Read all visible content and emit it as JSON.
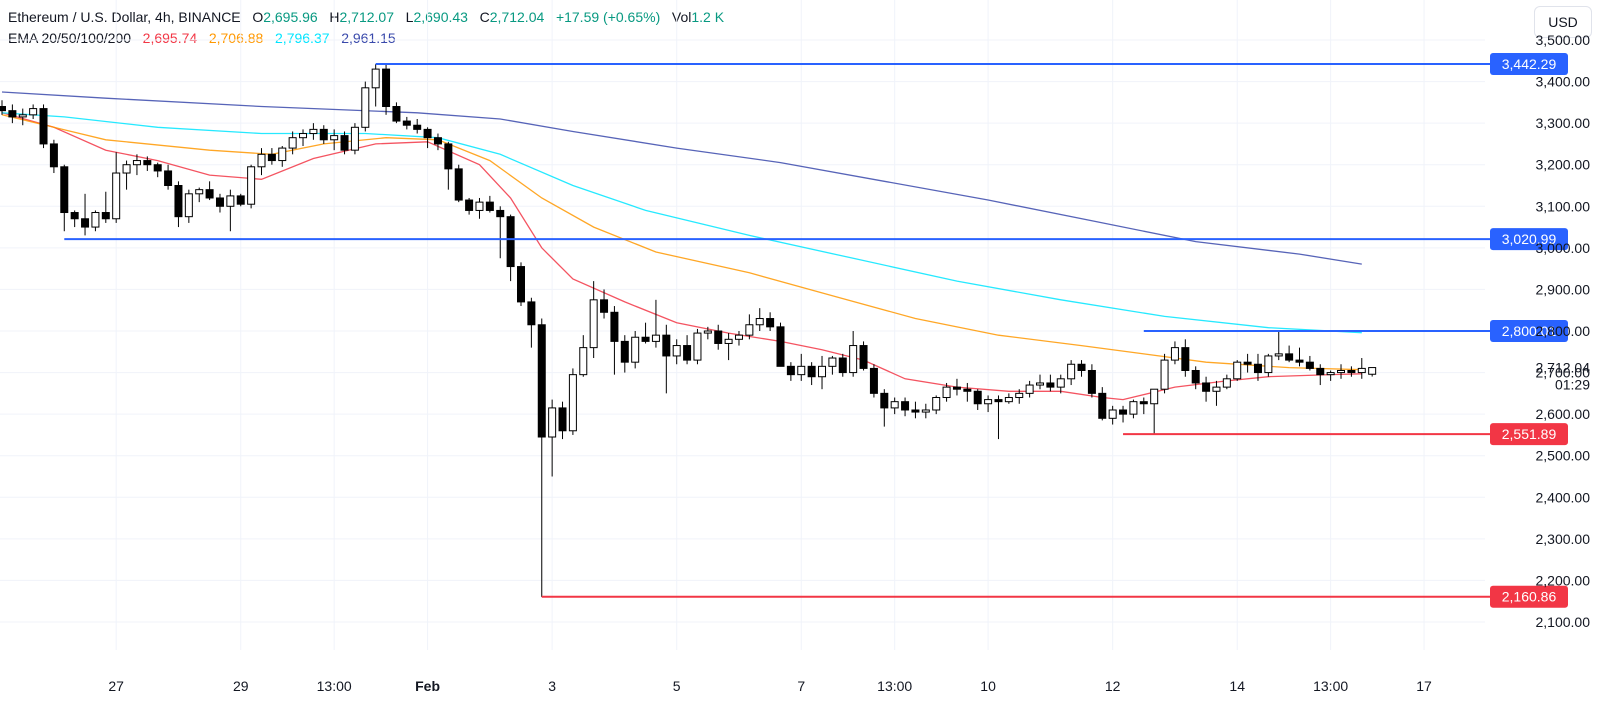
{
  "header": {
    "symbol": "Ethereum / U.S. Dollar, 4h, BINANCE",
    "o_label": "O",
    "o_value": "2,695.96",
    "h_label": "H",
    "h_value": "2,712.07",
    "l_label": "L",
    "l_value": "2,690.43",
    "c_label": "C",
    "c_value": "2,712.04",
    "change": "+17.59 (+0.65%)",
    "vol_label": "Vol",
    "vol_value": "1.2 K",
    "ema_label": "EMA 20/50/100/200",
    "ema20": "2,695.74",
    "ema50": "2,706.88",
    "ema100": "2,796.37",
    "ema200": "2,961.15"
  },
  "currency_button": "USD",
  "colors": {
    "up": "#ffffff",
    "down": "#000000",
    "candle_border": "#000000",
    "ema20": "#f23645",
    "ema50": "#ff9800",
    "ema100": "#00e5ff",
    "ema200": "#3949ab",
    "resistance": "#2962ff",
    "support": "#f23645",
    "text_green": "#089981"
  },
  "chart_data": {
    "type": "candlestick",
    "y_range": [
      2060,
      3520
    ],
    "y_ticks": [
      "3,500.00",
      "3,400.00",
      "3,300.00",
      "3,200.00",
      "3,100.00",
      "3,000.00",
      "2,900.00",
      "2,800.00",
      "2,700.00",
      "2,600.00",
      "2,500.00",
      "2,400.00",
      "2,300.00",
      "2,200.00",
      "2,100.00"
    ],
    "y_tick_values": [
      3500,
      3400,
      3300,
      3200,
      3100,
      3000,
      2900,
      2800,
      2700,
      2600,
      2500,
      2400,
      2300,
      2200,
      2100
    ],
    "x_labels": [
      {
        "text": "27",
        "bar": 11,
        "bold": false
      },
      {
        "text": "29",
        "bar": 23,
        "bold": false
      },
      {
        "text": "13:00",
        "bar": 32,
        "bold": false
      },
      {
        "text": "Feb",
        "bar": 41,
        "bold": true
      },
      {
        "text": "3",
        "bar": 53,
        "bold": false
      },
      {
        "text": "5",
        "bar": 65,
        "bold": false
      },
      {
        "text": "7",
        "bar": 77,
        "bold": false
      },
      {
        "text": "13:00",
        "bar": 86,
        "bold": false
      },
      {
        "text": "10",
        "bar": 95,
        "bold": false
      },
      {
        "text": "12",
        "bar": 107,
        "bold": false
      },
      {
        "text": "14",
        "bar": 119,
        "bold": false
      },
      {
        "text": "13:00",
        "bar": 128,
        "bold": false
      },
      {
        "text": "17",
        "bar": 137,
        "bold": false
      }
    ],
    "candles_ohlc": [
      [
        3340,
        3355,
        3320,
        3330
      ],
      [
        3330,
        3345,
        3300,
        3315
      ],
      [
        3315,
        3335,
        3295,
        3320
      ],
      [
        3320,
        3345,
        3310,
        3335
      ],
      [
        3335,
        3345,
        3240,
        3250
      ],
      [
        3250,
        3260,
        3180,
        3195
      ],
      [
        3195,
        3200,
        3040,
        3085
      ],
      [
        3085,
        3090,
        3050,
        3070
      ],
      [
        3070,
        3130,
        3030,
        3050
      ],
      [
        3050,
        3090,
        3040,
        3085
      ],
      [
        3085,
        3135,
        3060,
        3070
      ],
      [
        3070,
        3230,
        3060,
        3180
      ],
      [
        3180,
        3210,
        3140,
        3200
      ],
      [
        3200,
        3225,
        3175,
        3210
      ],
      [
        3210,
        3220,
        3185,
        3200
      ],
      [
        3200,
        3205,
        3170,
        3185
      ],
      [
        3185,
        3200,
        3140,
        3150
      ],
      [
        3150,
        3160,
        3050,
        3075
      ],
      [
        3075,
        3140,
        3060,
        3130
      ],
      [
        3130,
        3145,
        3110,
        3140
      ],
      [
        3140,
        3160,
        3115,
        3120
      ],
      [
        3120,
        3130,
        3085,
        3100
      ],
      [
        3100,
        3140,
        3040,
        3125
      ],
      [
        3125,
        3130,
        3100,
        3105
      ],
      [
        3105,
        3200,
        3095,
        3195
      ],
      [
        3195,
        3240,
        3175,
        3225
      ],
      [
        3225,
        3240,
        3200,
        3210
      ],
      [
        3210,
        3245,
        3195,
        3240
      ],
      [
        3240,
        3280,
        3225,
        3265
      ],
      [
        3265,
        3285,
        3245,
        3275
      ],
      [
        3275,
        3300,
        3260,
        3285
      ],
      [
        3285,
        3295,
        3250,
        3260
      ],
      [
        3260,
        3285,
        3235,
        3270
      ],
      [
        3270,
        3280,
        3225,
        3235
      ],
      [
        3235,
        3300,
        3225,
        3290
      ],
      [
        3290,
        3400,
        3280,
        3385
      ],
      [
        3385,
        3442,
        3340,
        3430
      ],
      [
        3430,
        3440,
        3320,
        3340
      ],
      [
        3340,
        3350,
        3300,
        3305
      ],
      [
        3305,
        3315,
        3285,
        3295
      ],
      [
        3295,
        3310,
        3275,
        3285
      ],
      [
        3285,
        3290,
        3240,
        3265
      ],
      [
        3265,
        3275,
        3235,
        3250
      ],
      [
        3250,
        3255,
        3140,
        3190
      ],
      [
        3190,
        3200,
        3110,
        3115
      ],
      [
        3115,
        3120,
        3080,
        3090
      ],
      [
        3090,
        3120,
        3070,
        3110
      ],
      [
        3110,
        3125,
        3085,
        3090
      ],
      [
        3090,
        3100,
        2975,
        3075
      ],
      [
        3075,
        3080,
        2920,
        2955
      ],
      [
        2955,
        2965,
        2860,
        2870
      ],
      [
        2870,
        2880,
        2760,
        2815
      ],
      [
        2815,
        2830,
        2160,
        2545
      ],
      [
        2545,
        2635,
        2450,
        2615
      ],
      [
        2615,
        2630,
        2540,
        2560
      ],
      [
        2560,
        2710,
        2550,
        2695
      ],
      [
        2695,
        2790,
        2690,
        2760
      ],
      [
        2760,
        2920,
        2735,
        2875
      ],
      [
        2875,
        2900,
        2830,
        2845
      ],
      [
        2845,
        2860,
        2695,
        2775
      ],
      [
        2775,
        2790,
        2700,
        2725
      ],
      [
        2725,
        2800,
        2710,
        2785
      ],
      [
        2785,
        2820,
        2770,
        2775
      ],
      [
        2775,
        2875,
        2760,
        2790
      ],
      [
        2790,
        2815,
        2650,
        2740
      ],
      [
        2740,
        2780,
        2720,
        2765
      ],
      [
        2765,
        2790,
        2720,
        2730
      ],
      [
        2730,
        2805,
        2720,
        2795
      ],
      [
        2795,
        2810,
        2780,
        2800
      ],
      [
        2800,
        2815,
        2755,
        2770
      ],
      [
        2770,
        2795,
        2730,
        2780
      ],
      [
        2780,
        2800,
        2765,
        2790
      ],
      [
        2790,
        2840,
        2780,
        2815
      ],
      [
        2815,
        2855,
        2800,
        2830
      ],
      [
        2830,
        2845,
        2800,
        2810
      ],
      [
        2810,
        2820,
        2715,
        2715
      ],
      [
        2715,
        2725,
        2680,
        2695
      ],
      [
        2695,
        2745,
        2680,
        2715
      ],
      [
        2715,
        2725,
        2670,
        2690
      ],
      [
        2690,
        2740,
        2660,
        2715
      ],
      [
        2715,
        2740,
        2695,
        2735
      ],
      [
        2735,
        2745,
        2690,
        2700
      ],
      [
        2700,
        2800,
        2690,
        2765
      ],
      [
        2765,
        2775,
        2705,
        2710
      ],
      [
        2710,
        2720,
        2640,
        2650
      ],
      [
        2650,
        2660,
        2570,
        2615
      ],
      [
        2615,
        2640,
        2600,
        2630
      ],
      [
        2630,
        2640,
        2595,
        2610
      ],
      [
        2610,
        2630,
        2590,
        2605
      ],
      [
        2605,
        2625,
        2590,
        2610
      ],
      [
        2610,
        2645,
        2600,
        2640
      ],
      [
        2640,
        2675,
        2630,
        2665
      ],
      [
        2665,
        2685,
        2645,
        2660
      ],
      [
        2660,
        2675,
        2630,
        2655
      ],
      [
        2655,
        2660,
        2610,
        2625
      ],
      [
        2625,
        2645,
        2605,
        2635
      ],
      [
        2635,
        2645,
        2540,
        2630
      ],
      [
        2630,
        2650,
        2625,
        2640
      ],
      [
        2640,
        2660,
        2625,
        2650
      ],
      [
        2650,
        2680,
        2640,
        2670
      ],
      [
        2670,
        2695,
        2660,
        2675
      ],
      [
        2675,
        2695,
        2655,
        2665
      ],
      [
        2665,
        2695,
        2650,
        2685
      ],
      [
        2685,
        2730,
        2670,
        2720
      ],
      [
        2720,
        2730,
        2690,
        2705
      ],
      [
        2705,
        2720,
        2640,
        2650
      ],
      [
        2650,
        2665,
        2585,
        2590
      ],
      [
        2590,
        2620,
        2575,
        2610
      ],
      [
        2610,
        2620,
        2580,
        2600
      ],
      [
        2600,
        2635,
        2590,
        2630
      ],
      [
        2630,
        2640,
        2600,
        2625
      ],
      [
        2625,
        2645,
        2551,
        2660
      ],
      [
        2660,
        2745,
        2650,
        2730
      ],
      [
        2730,
        2775,
        2720,
        2760
      ],
      [
        2760,
        2780,
        2690,
        2705
      ],
      [
        2705,
        2715,
        2660,
        2675
      ],
      [
        2675,
        2690,
        2630,
        2655
      ],
      [
        2655,
        2680,
        2620,
        2665
      ],
      [
        2665,
        2695,
        2660,
        2685
      ],
      [
        2685,
        2730,
        2680,
        2725
      ],
      [
        2725,
        2745,
        2700,
        2720
      ],
      [
        2720,
        2745,
        2680,
        2700
      ],
      [
        2700,
        2745,
        2690,
        2740
      ],
      [
        2740,
        2800,
        2730,
        2745
      ],
      [
        2745,
        2765,
        2725,
        2730
      ],
      [
        2730,
        2760,
        2715,
        2725
      ],
      [
        2725,
        2740,
        2705,
        2710
      ],
      [
        2710,
        2720,
        2670,
        2695
      ],
      [
        2695,
        2705,
        2680,
        2700
      ],
      [
        2700,
        2720,
        2685,
        2705
      ],
      [
        2705,
        2715,
        2690,
        2700
      ],
      [
        2700,
        2735,
        2685,
        2710
      ],
      [
        2695.96,
        2712.07,
        2690.43,
        2712.04
      ]
    ],
    "ema_series": [
      {
        "name": "EMA 20",
        "color": "#f23645",
        "points": [
          [
            0,
            3325
          ],
          [
            5,
            3290
          ],
          [
            10,
            3235
          ],
          [
            15,
            3210
          ],
          [
            20,
            3175
          ],
          [
            25,
            3165
          ],
          [
            30,
            3215
          ],
          [
            36,
            3250
          ],
          [
            41,
            3255
          ],
          [
            46,
            3200
          ],
          [
            49,
            3120
          ],
          [
            52,
            3000
          ],
          [
            55,
            2925
          ],
          [
            60,
            2870
          ],
          [
            65,
            2820
          ],
          [
            70,
            2795
          ],
          [
            75,
            2775
          ],
          [
            79,
            2755
          ],
          [
            83,
            2730
          ],
          [
            87,
            2685
          ],
          [
            92,
            2665
          ],
          [
            97,
            2655
          ],
          [
            102,
            2655
          ],
          [
            106,
            2640
          ],
          [
            108,
            2635
          ],
          [
            113,
            2665
          ],
          [
            118,
            2680
          ],
          [
            122,
            2690
          ],
          [
            128,
            2695
          ],
          [
            131,
            2697
          ]
        ]
      },
      {
        "name": "EMA 50",
        "color": "#ff9800",
        "points": [
          [
            0,
            3320
          ],
          [
            5,
            3290
          ],
          [
            10,
            3260
          ],
          [
            20,
            3235
          ],
          [
            26,
            3225
          ],
          [
            31,
            3250
          ],
          [
            37,
            3265
          ],
          [
            42,
            3260
          ],
          [
            47,
            3210
          ],
          [
            52,
            3120
          ],
          [
            57,
            3050
          ],
          [
            63,
            2990
          ],
          [
            72,
            2940
          ],
          [
            80,
            2885
          ],
          [
            88,
            2830
          ],
          [
            96,
            2790
          ],
          [
            104,
            2765
          ],
          [
            110,
            2745
          ],
          [
            116,
            2725
          ],
          [
            124,
            2712
          ],
          [
            131,
            2707
          ]
        ]
      },
      {
        "name": "EMA 100",
        "color": "#00e5ff",
        "points": [
          [
            0,
            3325
          ],
          [
            6,
            3315
          ],
          [
            15,
            3290
          ],
          [
            25,
            3275
          ],
          [
            35,
            3275
          ],
          [
            42,
            3265
          ],
          [
            48,
            3225
          ],
          [
            55,
            3150
          ],
          [
            62,
            3090
          ],
          [
            72,
            3030
          ],
          [
            82,
            2975
          ],
          [
            92,
            2920
          ],
          [
            102,
            2875
          ],
          [
            112,
            2835
          ],
          [
            122,
            2808
          ],
          [
            131,
            2796
          ]
        ]
      },
      {
        "name": "EMA 200",
        "color": "#3949ab",
        "points": [
          [
            0,
            3375
          ],
          [
            10,
            3360
          ],
          [
            25,
            3340
          ],
          [
            40,
            3325
          ],
          [
            48,
            3310
          ],
          [
            55,
            3280
          ],
          [
            65,
            3240
          ],
          [
            75,
            3205
          ],
          [
            85,
            3160
          ],
          [
            95,
            3115
          ],
          [
            105,
            3065
          ],
          [
            115,
            3015
          ],
          [
            125,
            2985
          ],
          [
            131,
            2961
          ]
        ]
      }
    ],
    "levels": [
      {
        "value": 3442.29,
        "label": "3,442.29",
        "color": "#2962ff",
        "from_bar": 36
      },
      {
        "value": 3020.99,
        "label": "3,020.99",
        "color": "#2962ff",
        "from_bar": 6
      },
      {
        "value": 2800.01,
        "label": "2,800.01",
        "color": "#2962ff",
        "from_bar": 110
      },
      {
        "value": 2551.89,
        "label": "2,551.89",
        "color": "#f23645",
        "from_bar": 108
      },
      {
        "value": 2160.86,
        "label": "2,160.86",
        "color": "#f23645",
        "from_bar": 52
      }
    ],
    "current_price": {
      "value": 2712.04,
      "label": "2,712.04",
      "countdown": "01:29"
    }
  }
}
